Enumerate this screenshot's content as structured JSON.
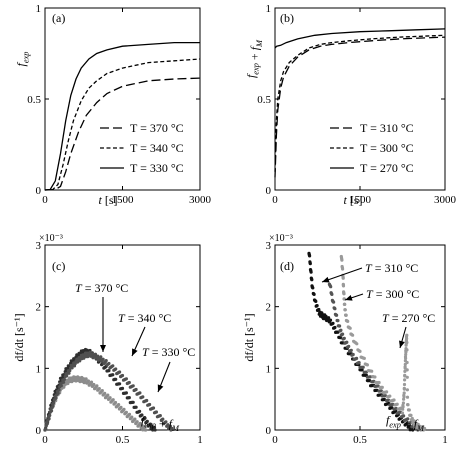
{
  "caption": "",
  "chart_data": [
    {
      "panel": "(a)",
      "type": "line",
      "xlabel": "t [s]",
      "ylabel": "f_exp",
      "xlim": [
        0,
        3000
      ],
      "ylim": [
        0,
        1
      ],
      "xticks": [
        "0",
        "1500",
        "3000"
      ],
      "yticks": [
        "0",
        "0.5",
        "1"
      ],
      "legend_position": "bottom-right",
      "series": [
        {
          "name": "T = 370 °C",
          "style": "long-dash",
          "x": [
            0,
            200,
            300,
            400,
            500,
            650,
            800,
            1000,
            1200,
            1500,
            2000,
            2500,
            3000
          ],
          "y": [
            0,
            0.002,
            0.02,
            0.1,
            0.2,
            0.32,
            0.41,
            0.48,
            0.53,
            0.57,
            0.6,
            0.61,
            0.615
          ]
        },
        {
          "name": "T = 340 °C",
          "style": "short-dash",
          "x": [
            0,
            150,
            250,
            350,
            450,
            550,
            700,
            850,
            1000,
            1200,
            1500,
            2000,
            2500,
            3000
          ],
          "y": [
            0,
            0.002,
            0.03,
            0.14,
            0.27,
            0.38,
            0.49,
            0.56,
            0.6,
            0.64,
            0.67,
            0.7,
            0.71,
            0.72
          ]
        },
        {
          "name": "T = 330 °C",
          "style": "solid",
          "x": [
            0,
            100,
            200,
            300,
            400,
            500,
            600,
            700,
            850,
            1000,
            1200,
            1500,
            2000,
            2500,
            3000
          ],
          "y": [
            0,
            0.003,
            0.05,
            0.2,
            0.38,
            0.52,
            0.61,
            0.67,
            0.72,
            0.75,
            0.77,
            0.79,
            0.8,
            0.81,
            0.81
          ]
        }
      ]
    },
    {
      "panel": "(b)",
      "type": "line",
      "xlabel": "t [s]",
      "ylabel": "f_exp + f_M",
      "xlim": [
        0,
        3000
      ],
      "ylim": [
        0,
        1
      ],
      "xticks": [
        "0",
        "1500",
        "3000"
      ],
      "yticks": [
        "0",
        "0.5",
        "1"
      ],
      "legend_position": "bottom-right",
      "series": [
        {
          "name": "T = 310 °C",
          "style": "long-dash",
          "x": [
            0,
            25,
            50,
            100,
            150,
            250,
            400,
            600,
            800,
            1000,
            1300,
            1700,
            2200,
            3000
          ],
          "y": [
            0.07,
            0.3,
            0.44,
            0.56,
            0.62,
            0.68,
            0.73,
            0.77,
            0.79,
            0.8,
            0.81,
            0.82,
            0.83,
            0.84
          ]
        },
        {
          "name": "T = 300 °C",
          "style": "short-dash",
          "x": [
            0,
            25,
            50,
            100,
            150,
            250,
            400,
            600,
            800,
            1000,
            1300,
            1700,
            2200,
            3000
          ],
          "y": [
            0.1,
            0.38,
            0.5,
            0.6,
            0.65,
            0.7,
            0.74,
            0.78,
            0.8,
            0.81,
            0.82,
            0.83,
            0.84,
            0.85
          ]
        },
        {
          "name": "T = 270 °C",
          "style": "solid",
          "x": [
            0,
            30,
            100,
            200,
            400,
            700,
            1000,
            1500,
            2000,
            2500,
            3000
          ],
          "y": [
            0.78,
            0.79,
            0.795,
            0.81,
            0.83,
            0.85,
            0.86,
            0.87,
            0.875,
            0.88,
            0.885
          ]
        }
      ]
    },
    {
      "panel": "(c)",
      "type": "scatter",
      "xlabel": "f_exp + f_M",
      "ylabel": "df/dt [s⁻¹]",
      "y_multiplier": "×10⁻³",
      "xlim": [
        0,
        1
      ],
      "ylim": [
        0,
        3
      ],
      "xticks": [
        "0",
        "0.5",
        "1"
      ],
      "yticks": [
        "0",
        "1",
        "2",
        "3"
      ],
      "annotations": [
        "T = 370 °C",
        "T = 340 °C",
        "T = 330 °C"
      ],
      "series": [
        {
          "name": "T = 370 °C",
          "color": "#8c8c8c",
          "x": [
            0.0,
            0.02,
            0.05,
            0.08,
            0.11,
            0.14,
            0.17,
            0.2,
            0.23,
            0.26,
            0.3,
            0.34,
            0.38,
            0.42,
            0.46,
            0.5,
            0.54,
            0.58,
            0.62,
            0.65
          ],
          "y": [
            0.0,
            0.18,
            0.4,
            0.58,
            0.7,
            0.78,
            0.82,
            0.83,
            0.82,
            0.8,
            0.74,
            0.67,
            0.58,
            0.5,
            0.41,
            0.32,
            0.23,
            0.14,
            0.06,
            0.0
          ]
        },
        {
          "name": "T = 340 °C",
          "color": "#2e2e2e",
          "x": [
            0.0,
            0.03,
            0.06,
            0.1,
            0.14,
            0.18,
            0.22,
            0.25,
            0.28,
            0.32,
            0.36,
            0.4,
            0.45,
            0.5,
            0.55,
            0.6,
            0.64,
            0.68,
            0.71
          ],
          "y": [
            0.0,
            0.3,
            0.56,
            0.8,
            0.98,
            1.12,
            1.22,
            1.27,
            1.27,
            1.2,
            1.1,
            0.98,
            0.82,
            0.65,
            0.48,
            0.3,
            0.17,
            0.06,
            0.0
          ]
        },
        {
          "name": "T = 330 °C",
          "color": "#505050",
          "x": [
            0.0,
            0.03,
            0.06,
            0.1,
            0.14,
            0.18,
            0.22,
            0.25,
            0.28,
            0.32,
            0.36,
            0.4,
            0.45,
            0.5,
            0.55,
            0.6,
            0.65,
            0.7,
            0.75,
            0.79,
            0.82
          ],
          "y": [
            0.0,
            0.25,
            0.48,
            0.72,
            0.9,
            1.05,
            1.15,
            1.2,
            1.23,
            1.2,
            1.15,
            1.08,
            0.98,
            0.86,
            0.73,
            0.6,
            0.46,
            0.32,
            0.18,
            0.07,
            0.0
          ]
        }
      ]
    },
    {
      "panel": "(d)",
      "type": "scatter",
      "xlabel": "f_exp + f_M",
      "ylabel": "df/dt [s⁻¹]",
      "y_multiplier": "×10⁻³",
      "xlim": [
        0,
        1
      ],
      "ylim": [
        0,
        3
      ],
      "xticks": [
        "0",
        "0.5",
        "1"
      ],
      "yticks": [
        "0",
        "1",
        "2",
        "3"
      ],
      "annotations": [
        "T = 310 °C",
        "T = 300 °C",
        "T = 270 °C"
      ],
      "series": [
        {
          "name": "T = 310 °C",
          "color": "#111111",
          "x": [
            0.2,
            0.21,
            0.22,
            0.24,
            0.26,
            0.28,
            0.3,
            0.33,
            0.36,
            0.4,
            0.45,
            0.5,
            0.55,
            0.6,
            0.65,
            0.7,
            0.74,
            0.78,
            0.81
          ],
          "y": [
            2.9,
            2.6,
            2.3,
            2.05,
            1.9,
            1.85,
            1.82,
            1.75,
            1.6,
            1.4,
            1.2,
            1.0,
            0.8,
            0.62,
            0.45,
            0.3,
            0.18,
            0.08,
            0.0
          ]
        },
        {
          "name": "T = 300 °C",
          "color": "#555555",
          "x": [
            0.32,
            0.34,
            0.36,
            0.38,
            0.4,
            0.43,
            0.46,
            0.5,
            0.55,
            0.6,
            0.65,
            0.7,
            0.75,
            0.8,
            0.84
          ],
          "y": [
            2.4,
            2.1,
            1.85,
            1.65,
            1.5,
            1.35,
            1.2,
            1.05,
            0.87,
            0.7,
            0.52,
            0.36,
            0.22,
            0.1,
            0.0
          ]
        },
        {
          "name": "T = 270 °C",
          "color": "#9a9a9a",
          "x": [
            0.39,
            0.4,
            0.405,
            0.41,
            0.42,
            0.45,
            0.5,
            0.55,
            0.6,
            0.65,
            0.7,
            0.75,
            0.76,
            0.765,
            0.77,
            0.775,
            0.78,
            0.8,
            0.82,
            0.85,
            0.88
          ],
          "y": [
            2.85,
            2.5,
            2.2,
            2.0,
            1.8,
            1.55,
            1.25,
            1.0,
            0.78,
            0.6,
            0.45,
            0.3,
            0.6,
            1.0,
            1.3,
            1.55,
            0.4,
            0.2,
            0.1,
            0.04,
            0.0
          ]
        }
      ]
    }
  ]
}
